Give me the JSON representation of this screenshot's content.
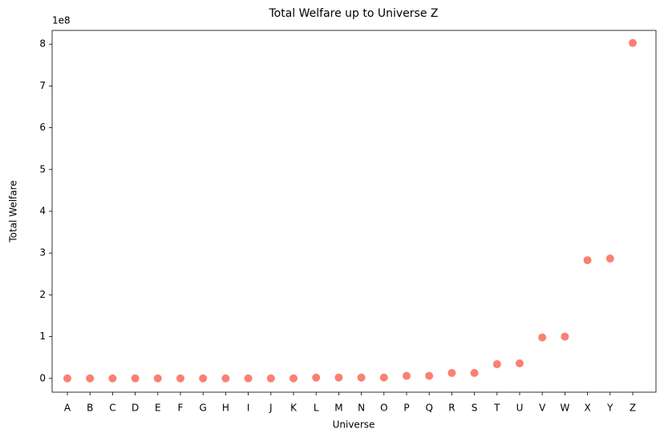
{
  "chart_data": {
    "type": "scatter",
    "title": "Total Welfare up to Universe Z",
    "x_label": "Universe",
    "y_label": "Total Welfare",
    "offset_label": "1e8",
    "categories": [
      "A",
      "B",
      "C",
      "D",
      "E",
      "F",
      "G",
      "H",
      "I",
      "J",
      "K",
      "L",
      "M",
      "N",
      "O",
      "P",
      "Q",
      "R",
      "S",
      "T",
      "U",
      "V",
      "W",
      "X",
      "Y",
      "Z"
    ],
    "values": [
      0,
      0,
      0,
      0,
      0,
      0,
      0,
      0,
      0,
      0,
      0,
      0.02,
      0.02,
      0.02,
      0.02,
      0.06,
      0.06,
      0.13,
      0.13,
      0.34,
      0.36,
      0.98,
      1.0,
      2.83,
      2.87,
      8.03
    ],
    "color": "#fa8072",
    "ylim": [
      -0.33,
      8.33
    ],
    "yticks": [
      0,
      1,
      2,
      3,
      4,
      5,
      6,
      7,
      8
    ]
  }
}
